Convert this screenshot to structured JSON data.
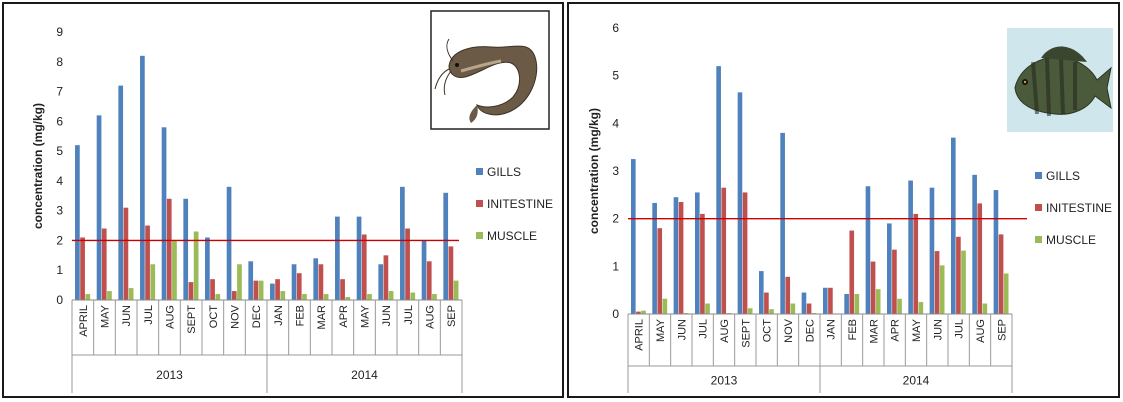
{
  "chart_data": [
    {
      "type": "bar",
      "ylabel": "concentration (mg/kg)",
      "ylim": [
        0,
        9
      ],
      "yticks": [
        0,
        1,
        2,
        3,
        4,
        5,
        6,
        7,
        8,
        9
      ],
      "categories": [
        "APRIL",
        "MAY",
        "JUN",
        "JUL",
        "AUG",
        "SEPT",
        "OCT",
        "NOV",
        "DEC",
        "JAN",
        "FEB",
        "MAR",
        "APR",
        "MAY",
        "JUN",
        "JUL",
        "AUG",
        "SEP"
      ],
      "groups": [
        {
          "label": "2013",
          "start": 0,
          "end": 8
        },
        {
          "label": "2014",
          "start": 9,
          "end": 17
        }
      ],
      "series": [
        {
          "name": "GILLS",
          "color": "#4f81bd",
          "values": [
            5.2,
            6.2,
            7.2,
            8.2,
            5.8,
            3.4,
            2.1,
            3.8,
            1.3,
            0.55,
            1.2,
            1.4,
            2.8,
            2.8,
            1.2,
            3.8,
            2.0,
            3.6
          ]
        },
        {
          "name": "INITESTINE",
          "color": "#c0504d",
          "values": [
            2.1,
            2.4,
            3.1,
            2.5,
            3.4,
            0.6,
            0.7,
            0.3,
            0.65,
            0.7,
            0.9,
            1.2,
            0.7,
            2.2,
            1.5,
            2.4,
            1.3,
            1.8
          ]
        },
        {
          "name": "MUSCLE",
          "color": "#9bbb59",
          "values": [
            0.2,
            0.3,
            0.4,
            1.2,
            2.0,
            2.3,
            0.2,
            1.2,
            0.65,
            0.3,
            0.2,
            0.2,
            0.1,
            0.2,
            0.3,
            0.25,
            0.2,
            0.65
          ]
        }
      ],
      "reference_line": {
        "value": 2.0,
        "color": "#cc0000"
      },
      "legend_position": "right",
      "grid": false,
      "image": "catfish-photo"
    },
    {
      "type": "bar",
      "ylabel": "concentration (mg/kg)",
      "ylim": [
        0,
        6
      ],
      "yticks": [
        0,
        1,
        2,
        3,
        4,
        5,
        6
      ],
      "categories": [
        "APRIL",
        "MAY",
        "JUN",
        "JUL",
        "AUG",
        "SEPT",
        "OCT",
        "NOV",
        "DEC",
        "JAN",
        "FEB",
        "MAR",
        "APR",
        "MAY",
        "JUN",
        "JUL",
        "AUG",
        "SEP"
      ],
      "groups": [
        {
          "label": "2013",
          "start": 0,
          "end": 8
        },
        {
          "label": "2014",
          "start": 9,
          "end": 17
        }
      ],
      "series": [
        {
          "name": "GILLS",
          "color": "#4f81bd",
          "values": [
            3.25,
            2.33,
            2.45,
            2.55,
            5.2,
            4.65,
            0.9,
            3.8,
            0.45,
            0.55,
            0.42,
            2.68,
            1.9,
            2.8,
            2.65,
            3.7,
            2.92,
            2.6
          ]
        },
        {
          "name": "INITESTINE",
          "color": "#c0504d",
          "values": [
            0.05,
            1.8,
            2.35,
            2.1,
            2.65,
            2.55,
            0.45,
            0.78,
            0.22,
            0.55,
            1.75,
            1.1,
            1.35,
            2.1,
            1.32,
            1.62,
            2.32,
            1.67
          ]
        },
        {
          "name": "MUSCLE",
          "color": "#9bbb59",
          "values": [
            0.07,
            0.32,
            0.02,
            0.22,
            0.02,
            0.12,
            0.1,
            0.22,
            0.02,
            0.0,
            0.42,
            0.52,
            0.32,
            0.25,
            1.02,
            1.33,
            0.22,
            0.85
          ]
        }
      ],
      "reference_line": {
        "value": 2.0,
        "color": "#cc0000"
      },
      "legend_position": "right",
      "grid": false,
      "image": "tilapia-photo"
    }
  ]
}
